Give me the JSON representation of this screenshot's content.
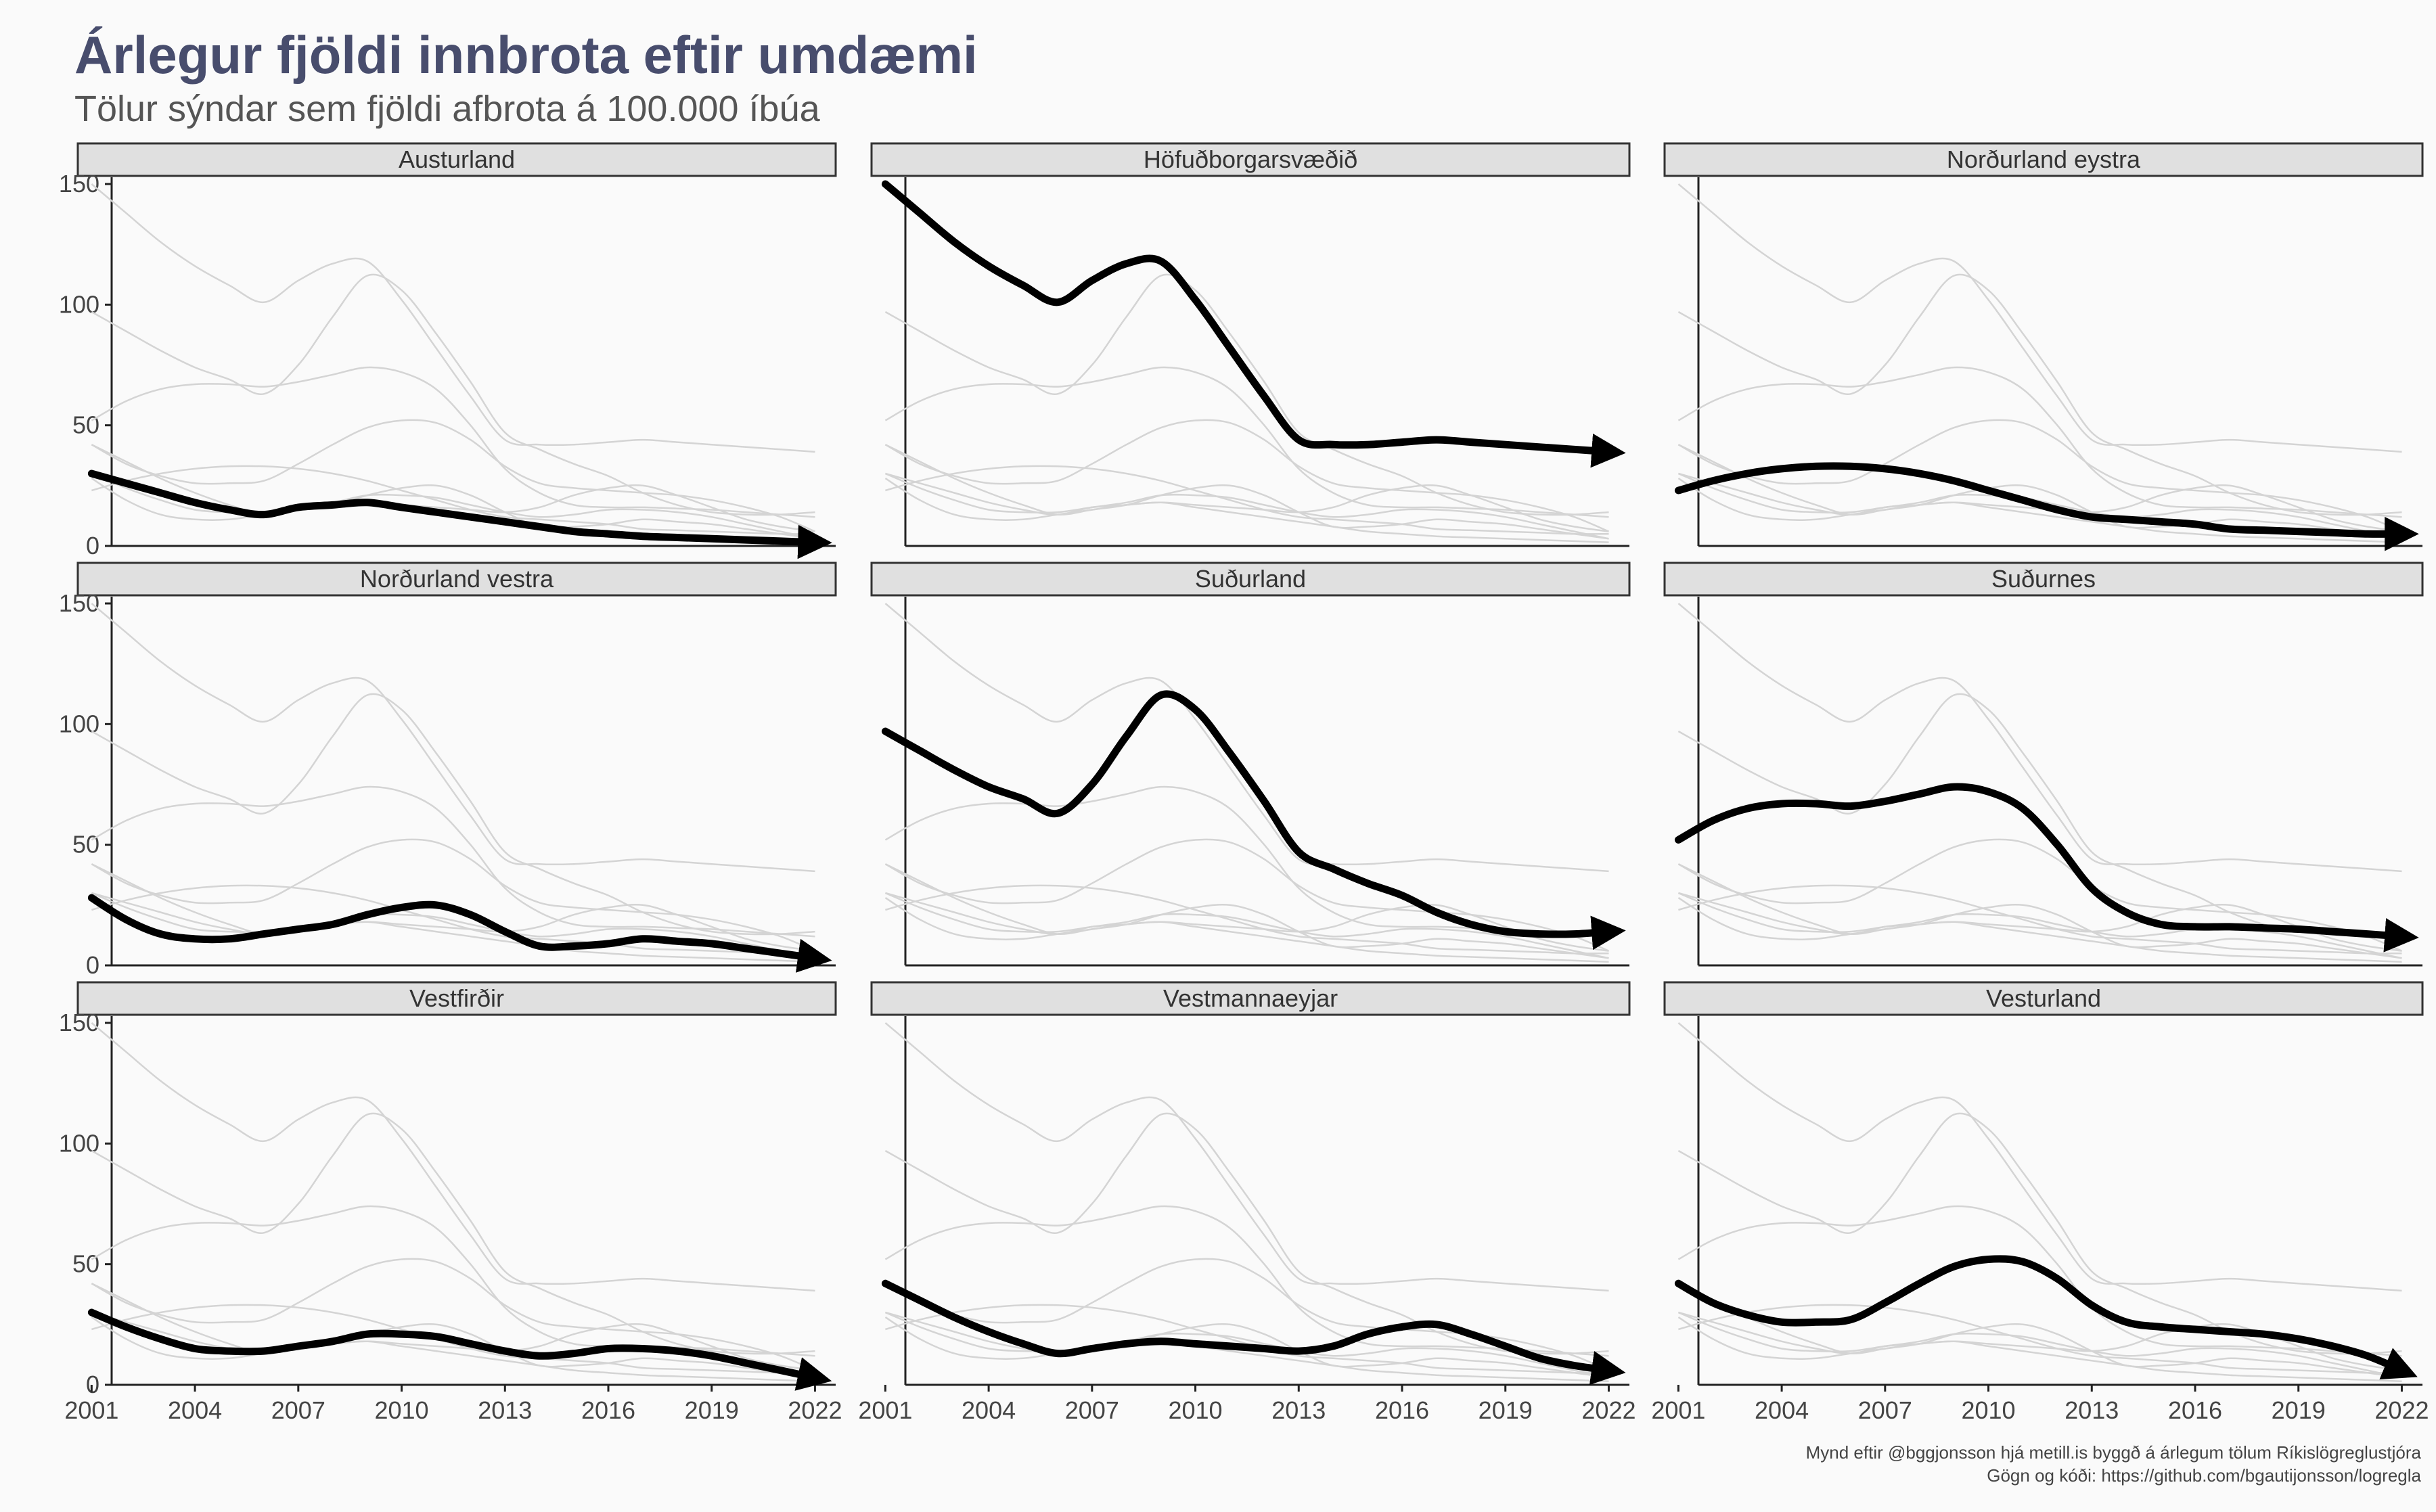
{
  "title": "Árlegur fjöldi innbrota eftir umdæmi",
  "subtitle": "Tölur sýndar sem fjöldi afbrota á 100.000 íbúa",
  "caption": {
    "line1": "Mynd eftir @bggjonsson hjá metill.is byggð á árlegum tölum Ríkislögreglustjóra",
    "line2": "Gögn og kóði: https://github.com/bgautijonsson/logregla"
  },
  "colors": {
    "background": "#fafafa",
    "highlight": "#000000",
    "context": "#d4d4d4",
    "strip": "#e0e0e0",
    "title": "#484d6d"
  },
  "chart_data": {
    "type": "line",
    "facets": [
      "Austurland",
      "Höfuðborgarsvæðið",
      "Norðurland eystra",
      "Norðurland vestra",
      "Suðurland",
      "Suðurnes",
      "Vestfirðir",
      "Vestmannaeyjar",
      "Vesturland"
    ],
    "x_ticks": [
      2001,
      2004,
      2007,
      2010,
      2013,
      2016,
      2019,
      2022
    ],
    "y_ticks": [
      0,
      50,
      100,
      150
    ],
    "xlim": [
      2000.6,
      2022.6
    ],
    "ylim": [
      0,
      150
    ],
    "x": [
      2001,
      2002,
      2003,
      2004,
      2005,
      2006,
      2007,
      2008,
      2009,
      2010,
      2011,
      2012,
      2013,
      2014,
      2015,
      2016,
      2017,
      2018,
      2019,
      2020,
      2021,
      2022
    ],
    "series": [
      {
        "name": "Austurland",
        "values": [
          30,
          26,
          22,
          18,
          15,
          13,
          16,
          17,
          18,
          16,
          14,
          12,
          10,
          8,
          6,
          5,
          4,
          3.5,
          3,
          2.5,
          2,
          1.5
        ]
      },
      {
        "name": "Höfuðborgarsvæðið",
        "values": [
          150,
          138,
          126,
          116,
          108,
          101,
          110,
          117,
          118,
          102,
          82,
          62,
          44,
          42,
          42,
          43,
          44,
          43,
          42,
          41,
          40,
          39
        ]
      },
      {
        "name": "Norðurland eystra",
        "values": [
          23,
          27,
          30,
          32,
          33,
          33,
          32,
          30,
          27,
          23,
          19,
          15,
          12,
          11,
          10,
          9,
          7,
          6.5,
          6,
          5.5,
          5,
          5
        ]
      },
      {
        "name": "Norðurland vestra",
        "values": [
          28,
          19,
          13,
          11,
          11,
          13,
          15,
          17,
          21,
          24,
          25,
          21,
          14,
          8,
          8,
          9,
          11,
          10,
          9,
          7,
          5,
          3
        ]
      },
      {
        "name": "Suðurland",
        "values": [
          97,
          89,
          81,
          74,
          69,
          63,
          75,
          95,
          112,
          106,
          88,
          68,
          47,
          40,
          34,
          29,
          22,
          17,
          14,
          13,
          13,
          14
        ]
      },
      {
        "name": "Suðurnes",
        "values": [
          52,
          60,
          65,
          67,
          67,
          66,
          68,
          71,
          74,
          72,
          65,
          50,
          32,
          22,
          17,
          16,
          16,
          15.5,
          15,
          14,
          13,
          12
        ]
      },
      {
        "name": "Vestfirðir",
        "values": [
          30,
          24,
          19,
          15,
          14,
          14,
          16,
          18,
          21,
          21,
          20,
          17,
          14,
          12,
          13,
          15,
          15,
          14,
          12,
          9,
          6,
          3
        ]
      },
      {
        "name": "Vestmannaeyjar",
        "values": [
          42,
          35,
          28,
          22,
          17,
          13,
          15,
          17,
          18,
          17,
          16,
          15,
          14,
          16,
          21,
          24,
          25,
          21,
          16,
          11,
          8,
          6
        ]
      },
      {
        "name": "Vesturland",
        "values": [
          42,
          34,
          29,
          26,
          26,
          27,
          34,
          42,
          49,
          52,
          51,
          44,
          33,
          26,
          24,
          23,
          22,
          21,
          19,
          16,
          12,
          6
        ]
      }
    ]
  }
}
